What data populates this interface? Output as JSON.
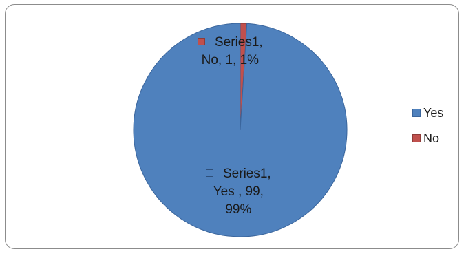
{
  "chart_data": {
    "type": "pie",
    "categories": [
      "Yes",
      "No"
    ],
    "values": [
      99,
      1
    ],
    "percentages": [
      "99%",
      "1%"
    ],
    "series": [
      {
        "name": "Series1",
        "values": [
          99,
          1
        ]
      }
    ],
    "colors": {
      "Yes": "#4f81bd",
      "No": "#c0504d"
    },
    "slice_borders": {
      "Yes": "#3a659c",
      "No": "#8e3b38"
    },
    "data_labels": {
      "no": {
        "line1": "Series1,",
        "line2": "No, 1, 1%"
      },
      "yes": {
        "line1": "Series1,",
        "line2": "Yes , 99,",
        "line3": "99%"
      }
    },
    "legend": {
      "position": "right",
      "items": [
        "Yes",
        "No"
      ]
    },
    "start_angle_deg": 0,
    "direction": "clockwise-from-top, No slice first"
  }
}
